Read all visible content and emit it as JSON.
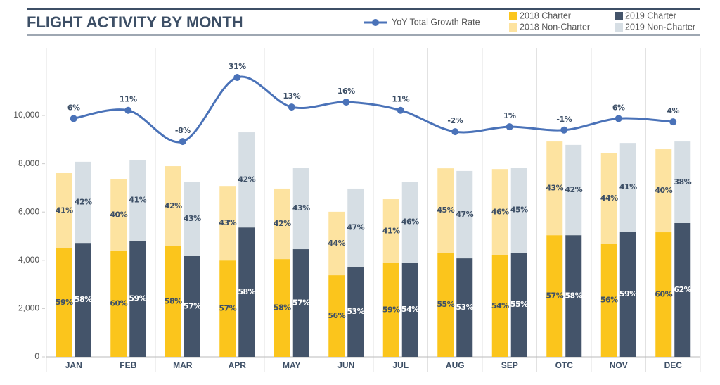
{
  "chart_data": {
    "type": "bar",
    "title": "FLIGHT ACTIVITY BY MONTH",
    "categories": [
      "JAN",
      "FEB",
      "MAR",
      "APR",
      "MAY",
      "JUN",
      "JUL",
      "AUG",
      "SEP",
      "OTC",
      "NOV",
      "DEC"
    ],
    "ylim": [
      0,
      12800
    ],
    "yticks": [
      0,
      {
        "value": 2000,
        "label": "2,000"
      },
      {
        "value": 4000,
        "label": "4,000"
      },
      {
        "value": 6000,
        "label": "6,000"
      },
      {
        "value": 8000,
        "label": "8,000"
      },
      {
        "value": 10000,
        "label": "10,000"
      }
    ],
    "y2lim": [
      -139,
      49
    ],
    "grid": false,
    "series": [
      {
        "name": "2018 Charter",
        "color": "#fbc51c",
        "values": [
          4490,
          4400,
          4580,
          3990,
          4050,
          3380,
          3880,
          4310,
          4200,
          5040,
          4690,
          5160
        ],
        "share_labels": [
          "59%",
          "60%",
          "58%",
          "57%",
          "58%",
          "56%",
          "59%",
          "55%",
          "54%",
          "57%",
          "56%",
          "60%"
        ]
      },
      {
        "name": "2018 Non-Charter",
        "color": "#fde3a0",
        "values": [
          3120,
          2950,
          3320,
          3090,
          2920,
          2630,
          2650,
          3500,
          3580,
          3880,
          3740,
          3440
        ],
        "share_labels": [
          "41%",
          "40%",
          "42%",
          "43%",
          "42%",
          "44%",
          "41%",
          "45%",
          "46%",
          "43%",
          "44%",
          "40%"
        ]
      },
      {
        "name": "2019 Charter",
        "color": "#44546a",
        "values": [
          4720,
          4810,
          4170,
          5360,
          4460,
          3730,
          3910,
          4080,
          4310,
          5040,
          5190,
          5540
        ],
        "share_labels": [
          "58%",
          "59%",
          "57%",
          "58%",
          "57%",
          "53%",
          "54%",
          "53%",
          "55%",
          "58%",
          "59%",
          "62%"
        ]
      },
      {
        "name": "2019 Non-Charter",
        "color": "#d6dee4",
        "values": [
          3360,
          3350,
          3090,
          3940,
          3380,
          3240,
          3350,
          3620,
          3530,
          3740,
          3670,
          3380
        ],
        "share_labels": [
          "42%",
          "41%",
          "43%",
          "42%",
          "43%",
          "47%",
          "46%",
          "47%",
          "45%",
          "42%",
          "41%",
          "38%"
        ]
      },
      {
        "name": "YoY Total Growth Rate",
        "color": "#4a72b8",
        "type": "line",
        "axis": "y2",
        "values": [
          6,
          11,
          -8,
          31,
          13,
          16,
          11,
          -2,
          1,
          -1,
          6,
          4
        ],
        "value_labels": [
          "6%",
          "11%",
          "-8%",
          "31%",
          "13%",
          "16%",
          "11%",
          "-2%",
          "1%",
          "-1%",
          "6%",
          "4%"
        ]
      }
    ]
  }
}
